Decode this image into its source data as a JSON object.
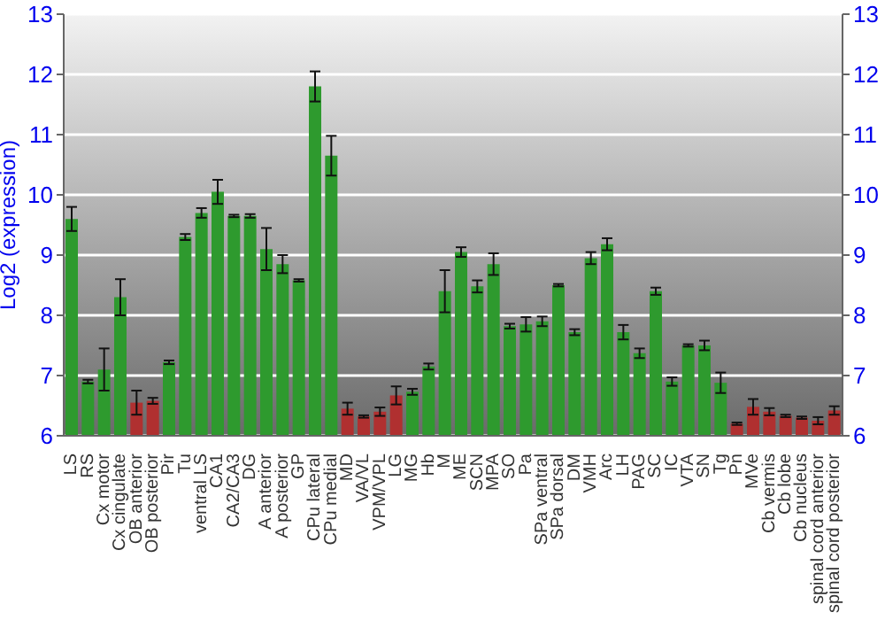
{
  "chart_data": {
    "type": "bar",
    "ylabel": "Log2 (expression)",
    "categories": [
      "LS",
      "RS",
      "Cx motor",
      "Cx cingulate",
      "OB anterior",
      "OB posterior",
      "Pir",
      "Tu",
      "ventral LS",
      "CA1",
      "CA2/CA3",
      "DG",
      "A anterior",
      "A posterior",
      "GP",
      "CPu lateral",
      "CPu medial",
      "MD",
      "VA/VL",
      "VPM/VPL",
      "LG",
      "MG",
      "Hb",
      "M",
      "ME",
      "SCN",
      "MPA",
      "SO",
      "Pa",
      "SPa ventral",
      "SPa dorsal",
      "DM",
      "VMH",
      "Arc",
      "LH",
      "PAG",
      "SC",
      "IC",
      "VTA",
      "SN",
      "Tg",
      "Pn",
      "MVe",
      "Cb vermis",
      "Cb lobe",
      "Cb nucleus",
      "spinal cord anterior",
      "spinal cord posterior"
    ],
    "values": [
      9.6,
      6.9,
      7.1,
      8.3,
      6.55,
      6.58,
      7.22,
      9.3,
      9.7,
      10.05,
      9.65,
      9.65,
      9.1,
      8.85,
      8.58,
      11.8,
      10.65,
      6.45,
      6.32,
      6.4,
      6.67,
      6.73,
      7.15,
      8.4,
      9.05,
      8.48,
      8.85,
      7.82,
      7.85,
      7.9,
      8.5,
      7.72,
      8.95,
      9.18,
      7.72,
      7.37,
      8.4,
      6.9,
      7.5,
      7.5,
      6.88,
      6.2,
      6.48,
      6.4,
      6.33,
      6.3,
      6.25,
      6.42
    ],
    "errors": [
      0.2,
      0.03,
      0.35,
      0.3,
      0.2,
      0.05,
      0.03,
      0.05,
      0.08,
      0.2,
      0.02,
      0.03,
      0.35,
      0.15,
      0.02,
      0.25,
      0.33,
      0.1,
      0.02,
      0.07,
      0.15,
      0.05,
      0.05,
      0.35,
      0.08,
      0.1,
      0.18,
      0.04,
      0.12,
      0.08,
      0.02,
      0.05,
      0.1,
      0.1,
      0.12,
      0.08,
      0.06,
      0.07,
      0.02,
      0.08,
      0.17,
      0.02,
      0.13,
      0.06,
      0.02,
      0.02,
      0.06,
      0.07
    ],
    "colors": [
      "#2e9a2e",
      "#2e9a2e",
      "#2e9a2e",
      "#2e9a2e",
      "#b03030",
      "#b03030",
      "#2e9a2e",
      "#2e9a2e",
      "#2e9a2e",
      "#2e9a2e",
      "#2e9a2e",
      "#2e9a2e",
      "#2e9a2e",
      "#2e9a2e",
      "#2e9a2e",
      "#2e9a2e",
      "#2e9a2e",
      "#b03030",
      "#b03030",
      "#b03030",
      "#b03030",
      "#2e9a2e",
      "#2e9a2e",
      "#2e9a2e",
      "#2e9a2e",
      "#2e9a2e",
      "#2e9a2e",
      "#2e9a2e",
      "#2e9a2e",
      "#2e9a2e",
      "#2e9a2e",
      "#2e9a2e",
      "#2e9a2e",
      "#2e9a2e",
      "#2e9a2e",
      "#2e9a2e",
      "#2e9a2e",
      "#2e9a2e",
      "#2e9a2e",
      "#2e9a2e",
      "#2e9a2e",
      "#b03030",
      "#b03030",
      "#b03030",
      "#b03030",
      "#b03030",
      "#b03030",
      "#b03030"
    ],
    "ylim": [
      6,
      13
    ],
    "yticks": [
      6,
      7,
      8,
      9,
      10,
      11,
      12,
      13
    ],
    "y2lim": [
      6,
      13
    ],
    "y2ticks": [
      6,
      7,
      8,
      9,
      10,
      11,
      12,
      13
    ],
    "grid": "y"
  }
}
